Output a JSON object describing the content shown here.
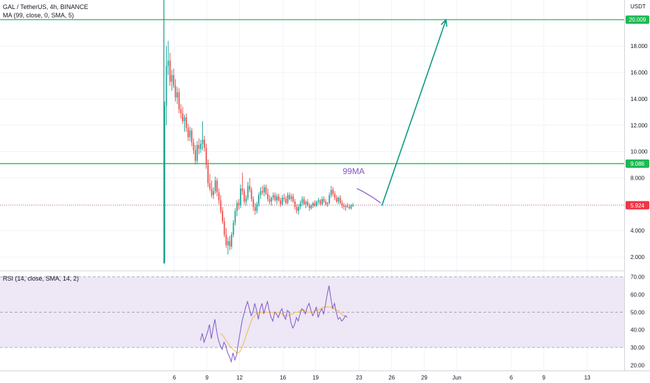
{
  "header": {
    "symbol_line": "GAL / TetherUS, 4h, BINANCE",
    "ma_line": "MA (99, close, 0, SMA, 5)",
    "rsi_line": "RSI (14, close, SMA, 14, 2)"
  },
  "colors": {
    "up": "#26a69a",
    "down": "#ef5350",
    "horizontal_line": "#1db954",
    "arrow": "#089981",
    "current_price": "#f23645",
    "ma_annotation": "#7e57c2",
    "rsi_line": "#7e57c2",
    "rsi_ma": "#f2b84b",
    "rsi_band": "#ede7f6",
    "level_badge": "#1db954"
  },
  "chart_data": [
    {
      "type": "candlestick",
      "quote_unit": "USDT",
      "x_ticks": [
        "6",
        "9",
        "12",
        "16",
        "19",
        "23",
        "26",
        "29",
        "Jun",
        "6",
        "9",
        "13"
      ],
      "y_ticks": [
        "2.000",
        "4.000",
        "6.000",
        "8.000",
        "10.000",
        "12.000",
        "14.000",
        "16.000",
        "18.000"
      ],
      "ylim": [
        1.0,
        21.5
      ],
      "horizontal_levels": [
        {
          "label": "20.009",
          "value": 20.009
        },
        {
          "label": "9.086",
          "value": 9.086
        }
      ],
      "current_price": {
        "label": "5.924",
        "value": 5.924
      },
      "annotation": "99MA",
      "arrow": {
        "from_day": 25.1,
        "from_value": 5.9,
        "to_day": 31.0,
        "to_value": 20.0
      },
      "first_bar_day": 5.1,
      "bars_per_day": 6,
      "ohlc": [
        [
          1.6,
          13.8,
          1.5,
          13.5
        ],
        [
          13.5,
          18.0,
          12.0,
          16.5
        ],
        [
          16.5,
          18.4,
          15.8,
          16.9
        ],
        [
          16.9,
          17.5,
          15.0,
          15.3
        ],
        [
          15.3,
          16.2,
          14.6,
          15.8
        ],
        [
          15.8,
          16.3,
          14.8,
          15.0
        ],
        [
          15.0,
          15.5,
          13.8,
          14.1
        ],
        [
          14.1,
          14.9,
          13.6,
          14.5
        ],
        [
          14.5,
          14.8,
          12.9,
          13.2
        ],
        [
          13.2,
          13.6,
          12.5,
          12.9
        ],
        [
          12.9,
          13.4,
          12.1,
          12.3
        ],
        [
          12.3,
          12.8,
          11.5,
          12.6
        ],
        [
          12.6,
          12.9,
          11.5,
          11.8
        ],
        [
          11.8,
          12.1,
          10.8,
          11.1
        ],
        [
          11.1,
          11.9,
          10.8,
          11.6
        ],
        [
          11.6,
          11.8,
          10.4,
          10.7
        ],
        [
          10.7,
          11.0,
          9.8,
          10.1
        ],
        [
          10.1,
          10.5,
          9.0,
          9.3
        ],
        [
          9.3,
          10.8,
          9.1,
          10.5
        ],
        [
          10.5,
          11.0,
          9.8,
          10.2
        ],
        [
          10.2,
          10.9,
          9.9,
          10.6
        ],
        [
          10.6,
          12.3,
          10.1,
          10.9
        ],
        [
          10.9,
          11.2,
          10.0,
          10.3
        ],
        [
          10.3,
          10.6,
          8.7,
          9.0
        ],
        [
          9.0,
          9.4,
          7.3,
          7.6
        ],
        [
          7.6,
          8.3,
          7.0,
          7.2
        ],
        [
          7.2,
          7.8,
          6.5,
          6.7
        ],
        [
          6.7,
          7.3,
          6.4,
          7.0
        ],
        [
          7.0,
          8.1,
          6.8,
          7.8
        ],
        [
          7.8,
          8.0,
          6.6,
          6.9
        ],
        [
          6.9,
          7.2,
          6.0,
          6.3
        ],
        [
          6.3,
          6.7,
          5.3,
          5.5
        ],
        [
          5.5,
          5.8,
          4.5,
          4.7
        ],
        [
          4.7,
          5.0,
          3.5,
          3.7
        ],
        [
          3.7,
          4.2,
          2.7,
          2.9
        ],
        [
          2.9,
          3.5,
          2.2,
          3.2
        ],
        [
          3.2,
          3.6,
          2.5,
          2.8
        ],
        [
          2.8,
          3.9,
          2.6,
          3.7
        ],
        [
          3.7,
          4.8,
          3.5,
          4.6
        ],
        [
          4.6,
          5.7,
          4.4,
          5.5
        ],
        [
          5.5,
          6.3,
          5.1,
          6.1
        ],
        [
          6.1,
          6.4,
          5.6,
          5.9
        ],
        [
          5.9,
          7.5,
          5.7,
          7.2
        ],
        [
          7.2,
          8.4,
          6.7,
          7.0
        ],
        [
          7.0,
          7.2,
          6.0,
          6.2
        ],
        [
          6.2,
          6.7,
          5.9,
          6.5
        ],
        [
          6.5,
          7.7,
          6.3,
          7.4
        ],
        [
          7.4,
          8.0,
          6.9,
          7.1
        ],
        [
          7.1,
          7.3,
          6.2,
          6.4
        ],
        [
          6.4,
          6.6,
          5.5,
          5.8
        ],
        [
          5.8,
          6.1,
          5.2,
          5.5
        ],
        [
          5.5,
          6.2,
          5.3,
          6.0
        ],
        [
          6.0,
          6.9,
          5.8,
          6.7
        ],
        [
          6.7,
          7.3,
          6.4,
          7.0
        ],
        [
          7.0,
          7.4,
          6.7,
          6.9
        ],
        [
          6.9,
          7.5,
          6.6,
          7.3
        ],
        [
          7.3,
          7.5,
          6.7,
          6.8
        ],
        [
          6.8,
          7.2,
          6.2,
          6.4
        ],
        [
          6.4,
          6.7,
          6.0,
          6.2
        ],
        [
          6.2,
          6.6,
          5.9,
          6.5
        ],
        [
          6.5,
          6.9,
          6.3,
          6.7
        ],
        [
          6.7,
          6.9,
          6.2,
          6.3
        ],
        [
          6.3,
          6.8,
          6.0,
          6.6
        ],
        [
          6.6,
          6.8,
          6.2,
          6.3
        ],
        [
          6.3,
          6.5,
          5.8,
          6.0
        ],
        [
          6.0,
          6.7,
          5.9,
          6.5
        ],
        [
          6.5,
          6.8,
          6.2,
          6.4
        ],
        [
          6.4,
          6.6,
          6.0,
          6.1
        ],
        [
          6.1,
          6.9,
          6.0,
          6.7
        ],
        [
          6.7,
          6.9,
          6.3,
          6.4
        ],
        [
          6.4,
          6.8,
          6.2,
          6.6
        ],
        [
          6.6,
          6.8,
          6.1,
          6.2
        ],
        [
          6.2,
          6.4,
          5.6,
          5.8
        ],
        [
          5.8,
          6.0,
          5.3,
          5.5
        ],
        [
          5.5,
          6.0,
          5.2,
          5.8
        ],
        [
          5.8,
          6.3,
          5.6,
          6.1
        ],
        [
          6.1,
          6.6,
          5.9,
          6.4
        ],
        [
          6.4,
          6.6,
          5.9,
          6.0
        ],
        [
          6.0,
          6.3,
          5.7,
          6.2
        ],
        [
          6.2,
          6.4,
          5.8,
          5.9
        ],
        [
          5.9,
          6.1,
          5.5,
          5.7
        ],
        [
          5.7,
          6.0,
          5.6,
          5.9
        ],
        [
          5.9,
          6.2,
          5.7,
          6.1
        ],
        [
          6.1,
          6.3,
          5.8,
          5.9
        ],
        [
          5.9,
          6.3,
          5.8,
          6.2
        ],
        [
          6.2,
          6.5,
          6.0,
          6.3
        ],
        [
          6.3,
          6.4,
          5.9,
          6.0
        ],
        [
          6.0,
          6.6,
          5.9,
          6.4
        ],
        [
          6.4,
          6.6,
          6.1,
          6.2
        ],
        [
          6.2,
          6.4,
          5.9,
          6.0
        ],
        [
          6.0,
          6.2,
          5.8,
          6.1
        ],
        [
          6.1,
          6.9,
          6.0,
          6.7
        ],
        [
          6.7,
          7.4,
          6.5,
          7.1
        ],
        [
          7.1,
          7.3,
          6.6,
          6.8
        ],
        [
          6.8,
          7.0,
          6.3,
          6.5
        ],
        [
          6.5,
          6.7,
          6.1,
          6.2
        ],
        [
          6.2,
          6.6,
          6.0,
          6.5
        ],
        [
          6.5,
          6.7,
          6.0,
          6.1
        ],
        [
          6.1,
          6.3,
          5.7,
          5.9
        ],
        [
          5.9,
          6.1,
          5.6,
          5.8
        ],
        [
          5.8,
          6.0,
          5.5,
          5.9
        ],
        [
          5.9,
          6.1,
          5.7,
          5.8
        ],
        [
          5.8,
          6.0,
          5.6,
          5.7
        ],
        [
          5.7,
          6.0,
          5.6,
          5.9
        ],
        [
          5.9,
          6.1,
          5.8,
          5.924
        ]
      ]
    },
    {
      "type": "line",
      "title": "RSI (14, close, SMA, 14, 2)",
      "y_ticks": [
        "20.00",
        "30.00",
        "40.00",
        "50.00",
        "60.00",
        "70.00"
      ],
      "ylim": [
        17.0,
        73.0
      ],
      "band": [
        30,
        70
      ],
      "midline": 50,
      "first_point_day": 8.4,
      "points_per_day": 6,
      "series": [
        {
          "values": [
            34,
            38,
            33,
            36,
            39,
            43,
            35,
            41,
            46,
            39,
            34,
            31,
            29,
            33,
            31,
            27,
            25,
            22,
            27,
            23,
            26,
            33,
            39,
            45,
            49,
            53,
            56,
            52,
            48,
            50,
            55,
            51,
            46,
            52,
            55,
            49,
            53,
            56,
            51,
            47,
            45,
            50,
            49,
            47,
            50,
            52,
            48,
            46,
            51,
            50,
            44,
            41,
            43,
            47,
            45,
            49,
            52,
            51,
            49,
            53,
            55,
            51,
            48,
            50,
            53,
            47,
            50,
            52,
            49,
            54,
            60,
            65,
            58,
            52,
            55,
            50,
            46,
            47,
            45,
            46,
            48,
            47
          ]
        },
        {
          "values": [
            38,
            37,
            36,
            34,
            33,
            31,
            30,
            29,
            28,
            27,
            27,
            28,
            30,
            33,
            36,
            39,
            42,
            45,
            47,
            48,
            49,
            50,
            50,
            50,
            50,
            50,
            50,
            50,
            50,
            50,
            50,
            50,
            50,
            50,
            49,
            48,
            48,
            48,
            48,
            49,
            49,
            50,
            50,
            50,
            51,
            51,
            51,
            51,
            50,
            50,
            50,
            50,
            51,
            51,
            51,
            52,
            52,
            53,
            53,
            53,
            53,
            53,
            52,
            52,
            51,
            51,
            50,
            49,
            48,
            48,
            48
          ]
        }
      ]
    }
  ]
}
